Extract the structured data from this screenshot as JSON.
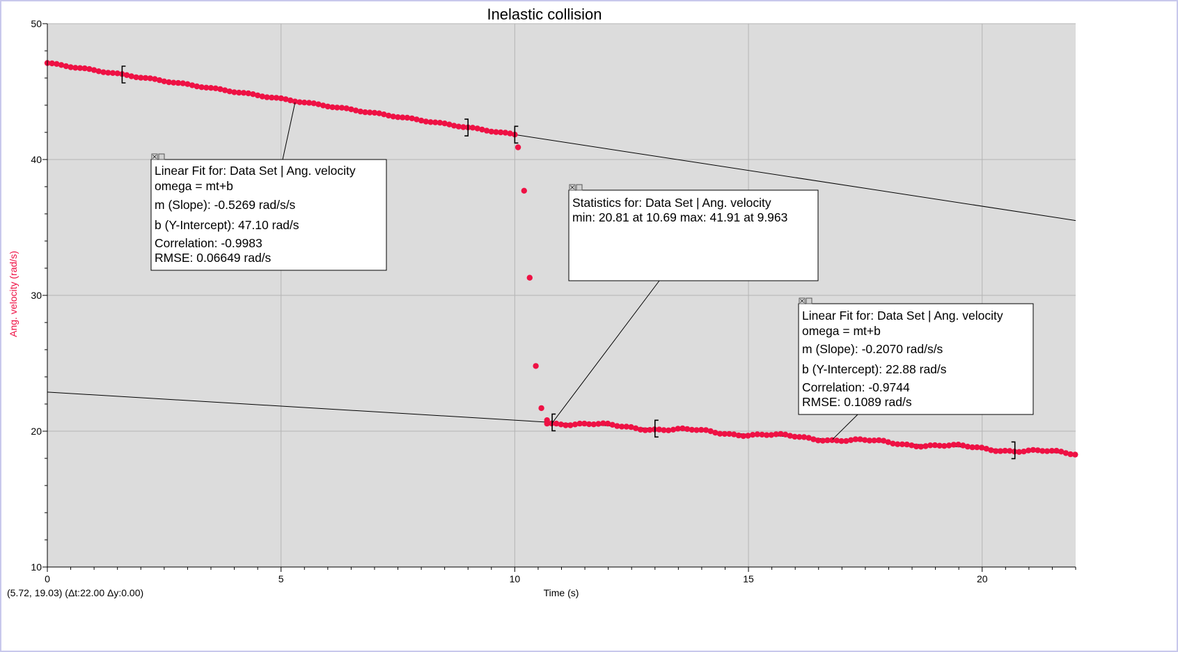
{
  "chart_data": {
    "type": "scatter",
    "title": "Inelastic collision",
    "xlabel": "Time (s)",
    "ylabel": "Ang. velocity (rad/s)",
    "xlim": [
      0,
      22
    ],
    "ylim": [
      10,
      50
    ],
    "x_ticks": [
      0,
      5,
      10,
      15,
      20
    ],
    "y_ticks": [
      10,
      20,
      30,
      40,
      50
    ],
    "x_minor_step": 0.5,
    "y_minor_step": 2,
    "grid": true,
    "colors": {
      "points": "#ee1144",
      "fit_lines": "#000000",
      "plot_background": "#dcdcdc",
      "ylabel": "#ee1144"
    },
    "series": [
      {
        "name": "Ang. velocity",
        "segments": [
          {
            "x_start": 0.0,
            "x_end": 10.0,
            "step": 0.1,
            "fit_slope": -0.5269,
            "fit_intercept": 47.1
          },
          {
            "x_start": 10.69,
            "x_end": 22.0,
            "step": 0.1,
            "fit_slope": -0.207,
            "fit_intercept": 22.88
          }
        ],
        "transition_points": [
          {
            "x": 10.07,
            "y": 40.9
          },
          {
            "x": 10.2,
            "y": 37.7
          },
          {
            "x": 10.32,
            "y": 31.3
          },
          {
            "x": 10.45,
            "y": 24.8
          },
          {
            "x": 10.57,
            "y": 21.7
          },
          {
            "x": 10.69,
            "y": 20.81
          }
        ]
      }
    ],
    "fit_lines": [
      {
        "slope": -0.5269,
        "intercept": 47.1,
        "x_range": [
          0,
          22
        ]
      },
      {
        "slope": -0.207,
        "intercept": 22.88,
        "x_range": [
          0,
          22
        ]
      }
    ],
    "brackets": [
      {
        "x": 1.6,
        "side": "left"
      },
      {
        "x": 9.0,
        "side": "right"
      },
      {
        "x": 10.0,
        "side": "left"
      },
      {
        "x": 10.8,
        "side": "left"
      },
      {
        "x": 13.0,
        "side": "left"
      },
      {
        "x": 20.7,
        "side": "right"
      }
    ],
    "annotations": [
      {
        "kind": "linear_fit",
        "lines": [
          "Linear Fit for: Data Set | Ang. velocity",
          "omega = mt+b",
          "m (Slope): -0.5269 rad/s/s",
          "b (Y-Intercept): 47.10 rad/s",
          "Correlation: -0.9983",
          "RMSE: 0.06649 rad/s"
        ],
        "pointer_to": {
          "x": 5.3,
          "y": 44.2
        }
      },
      {
        "kind": "statistics",
        "lines": [
          "Statistics for: Data Set | Ang. velocity",
          "min: 20.81 at 10.69 max: 41.91 at 9.963"
        ],
        "pointer_to": {
          "x": 10.8,
          "y": 20.6
        }
      },
      {
        "kind": "linear_fit",
        "lines": [
          "Linear Fit for: Data Set | Ang. velocity",
          "omega = mt+b",
          "m (Slope): -0.2070 rad/s/s",
          "b (Y-Intercept): 22.88 rad/s",
          "Correlation: -0.9744",
          "RMSE: 0.1089 rad/s"
        ],
        "pointer_to": {
          "x": 16.8,
          "y": 19.4
        }
      }
    ]
  },
  "status": {
    "cursor_readout": "(5.72, 19.03) (Δt:22.00 Δy:0.00)"
  }
}
